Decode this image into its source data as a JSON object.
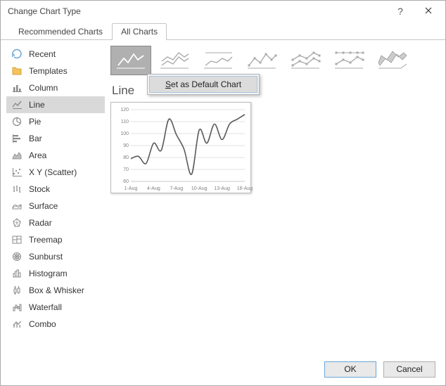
{
  "window": {
    "title": "Change Chart Type"
  },
  "tabs": {
    "recommended": "Recommended Charts",
    "all": "All Charts"
  },
  "sidebar": {
    "items": [
      {
        "label": "Recent"
      },
      {
        "label": "Templates"
      },
      {
        "label": "Column"
      },
      {
        "label": "Line"
      },
      {
        "label": "Pie"
      },
      {
        "label": "Bar"
      },
      {
        "label": "Area"
      },
      {
        "label": "X Y (Scatter)"
      },
      {
        "label": "Stock"
      },
      {
        "label": "Surface"
      },
      {
        "label": "Radar"
      },
      {
        "label": "Treemap"
      },
      {
        "label": "Sunburst"
      },
      {
        "label": "Histogram"
      },
      {
        "label": "Box & Whisker"
      },
      {
        "label": "Waterfall"
      },
      {
        "label": "Combo"
      }
    ],
    "selected_index": 3
  },
  "context_menu": {
    "set_default_prefix": "S",
    "set_default_suffix": "et as Default Chart"
  },
  "section": {
    "title": "Line"
  },
  "preview_chart": {
    "type": "line",
    "ylim": [
      60,
      120
    ],
    "ytick_step": 10,
    "yticks": [
      60,
      70,
      80,
      90,
      100,
      110,
      120
    ],
    "x_labels": [
      "1-Aug",
      "4-Aug",
      "7-Aug",
      "10-Aug",
      "13-Aug",
      "16-Aug"
    ],
    "values": [
      79,
      81,
      75,
      92,
      86,
      112,
      99,
      87,
      66,
      103,
      92,
      108,
      95,
      108,
      112,
      116
    ],
    "line_color": "#595959",
    "line_width": 1.6,
    "grid_color": "#d9d9d9",
    "axis_color": "#bfbfbf",
    "label_color": "#808080",
    "label_fontsize": 7,
    "background_color": "#ffffff"
  },
  "buttons": {
    "ok": "OK",
    "cancel": "Cancel"
  },
  "colors": {
    "accent": "#6aa5d8",
    "selection": "#d9d9d9",
    "subtype_selected_bg": "#b0b0b0",
    "border": "#c5c5c5"
  }
}
